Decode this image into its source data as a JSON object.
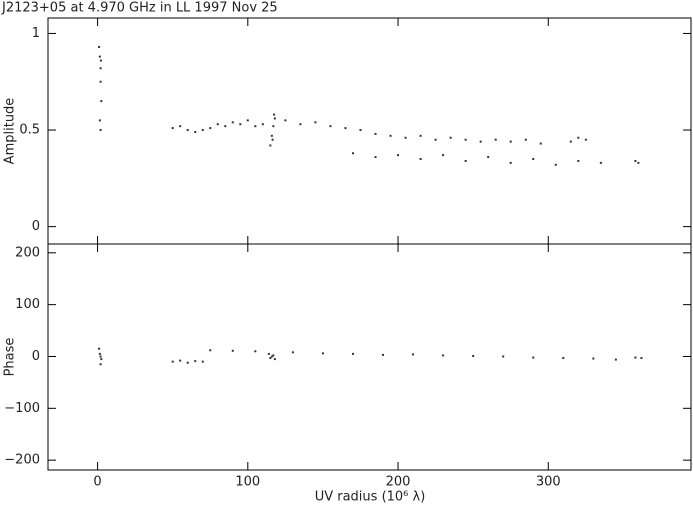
{
  "chart_data": [
    {
      "type": "scatter",
      "title": "J2123+05 at 4.970 GHz in LL  1997 Nov 25",
      "ylabel": "Amplitude",
      "color": "#333333",
      "xlim": [
        -33,
        395
      ],
      "xticks": [
        0,
        100,
        200,
        300
      ],
      "ylim": [
        -0.09,
        1.08
      ],
      "yticks": [
        0,
        0.5,
        1
      ],
      "x": [
        1,
        1.5,
        2,
        2,
        2.5,
        1.5,
        2,
        2.2,
        50,
        55,
        60,
        65,
        70,
        75,
        80,
        85,
        90,
        95,
        100,
        105,
        110,
        115,
        116,
        117,
        118,
        116.5,
        117.5,
        125,
        135,
        145,
        155,
        165,
        175,
        185,
        195,
        205,
        215,
        225,
        235,
        245,
        255,
        265,
        275,
        285,
        295,
        170,
        185,
        200,
        215,
        230,
        245,
        260,
        275,
        290,
        305,
        320,
        335,
        315,
        320,
        325,
        358,
        360
      ],
      "y": [
        0.93,
        0.88,
        0.82,
        0.75,
        0.65,
        0.55,
        0.5,
        0.86,
        0.51,
        0.52,
        0.5,
        0.49,
        0.5,
        0.51,
        0.53,
        0.52,
        0.54,
        0.53,
        0.55,
        0.52,
        0.53,
        0.42,
        0.47,
        0.52,
        0.56,
        0.45,
        0.58,
        0.55,
        0.53,
        0.54,
        0.52,
        0.51,
        0.5,
        0.48,
        0.47,
        0.46,
        0.47,
        0.45,
        0.46,
        0.45,
        0.44,
        0.45,
        0.44,
        0.45,
        0.43,
        0.38,
        0.36,
        0.37,
        0.35,
        0.37,
        0.34,
        0.36,
        0.33,
        0.35,
        0.32,
        0.34,
        0.33,
        0.44,
        0.46,
        0.45,
        0.34,
        0.33
      ]
    },
    {
      "type": "scatter",
      "ylabel": "Phase",
      "xlabel": "UV radius  (10⁶ λ)",
      "color": "#333333",
      "xlim": [
        -33,
        395
      ],
      "xticks": [
        0,
        100,
        200,
        300
      ],
      "ylim": [
        -219,
        217
      ],
      "yticks": [
        {
          "value": -200,
          "label": "−200"
        },
        {
          "value": -100,
          "label": "−100"
        },
        0,
        100,
        200
      ],
      "x": [
        1,
        1.5,
        2,
        2.5,
        2,
        50,
        55,
        60,
        65,
        70,
        75,
        90,
        105,
        130,
        150,
        170,
        190,
        210,
        230,
        250,
        270,
        290,
        310,
        330,
        345,
        114,
        116,
        118,
        117,
        115,
        358,
        362
      ],
      "y": [
        15,
        5,
        0,
        -5,
        -15,
        -10,
        -8,
        -12,
        -9,
        -10,
        12,
        11,
        10,
        8,
        6,
        5,
        3,
        4,
        2,
        1,
        0,
        -2,
        -3,
        -4,
        -6,
        5,
        0,
        -5,
        2,
        -3,
        -2,
        -3
      ]
    }
  ]
}
